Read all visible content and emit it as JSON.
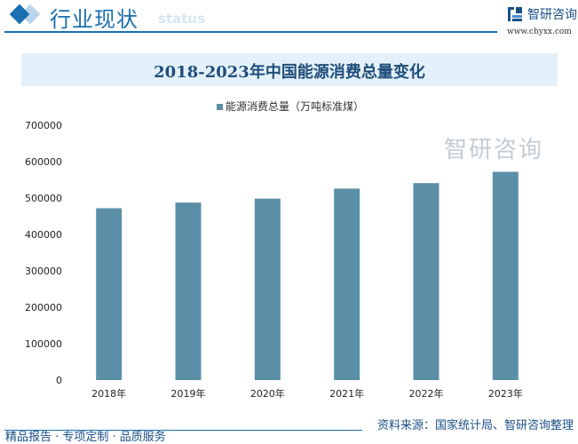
{
  "header": {
    "title": "行业现状",
    "ghost_text": "status",
    "brand": "智研咨询",
    "url": "www.chyxx.com"
  },
  "footer": {
    "left": "精品报告 · 专项定制 · 品质服务",
    "source": "资料来源：国家统计局、智研咨询整理",
    "watermark": "智研咨询"
  },
  "chart_data": {
    "type": "bar",
    "title": "2018-2023年中国能源消费总量变化",
    "categories": [
      "2018年",
      "2019年",
      "2020年",
      "2021年",
      "2022年",
      "2023年"
    ],
    "series": [
      {
        "name": "能源消费总量（万吨标准煤）",
        "values": [
          471925,
          487488,
          498314,
          525896,
          541000,
          572000
        ],
        "color": "#5b8fa8"
      }
    ],
    "yticks": [
      "0",
      "100000",
      "200000",
      "300000",
      "400000",
      "500000",
      "600000",
      "700000"
    ],
    "ylim": [
      0,
      700000
    ],
    "grid": false,
    "legend": "top"
  }
}
